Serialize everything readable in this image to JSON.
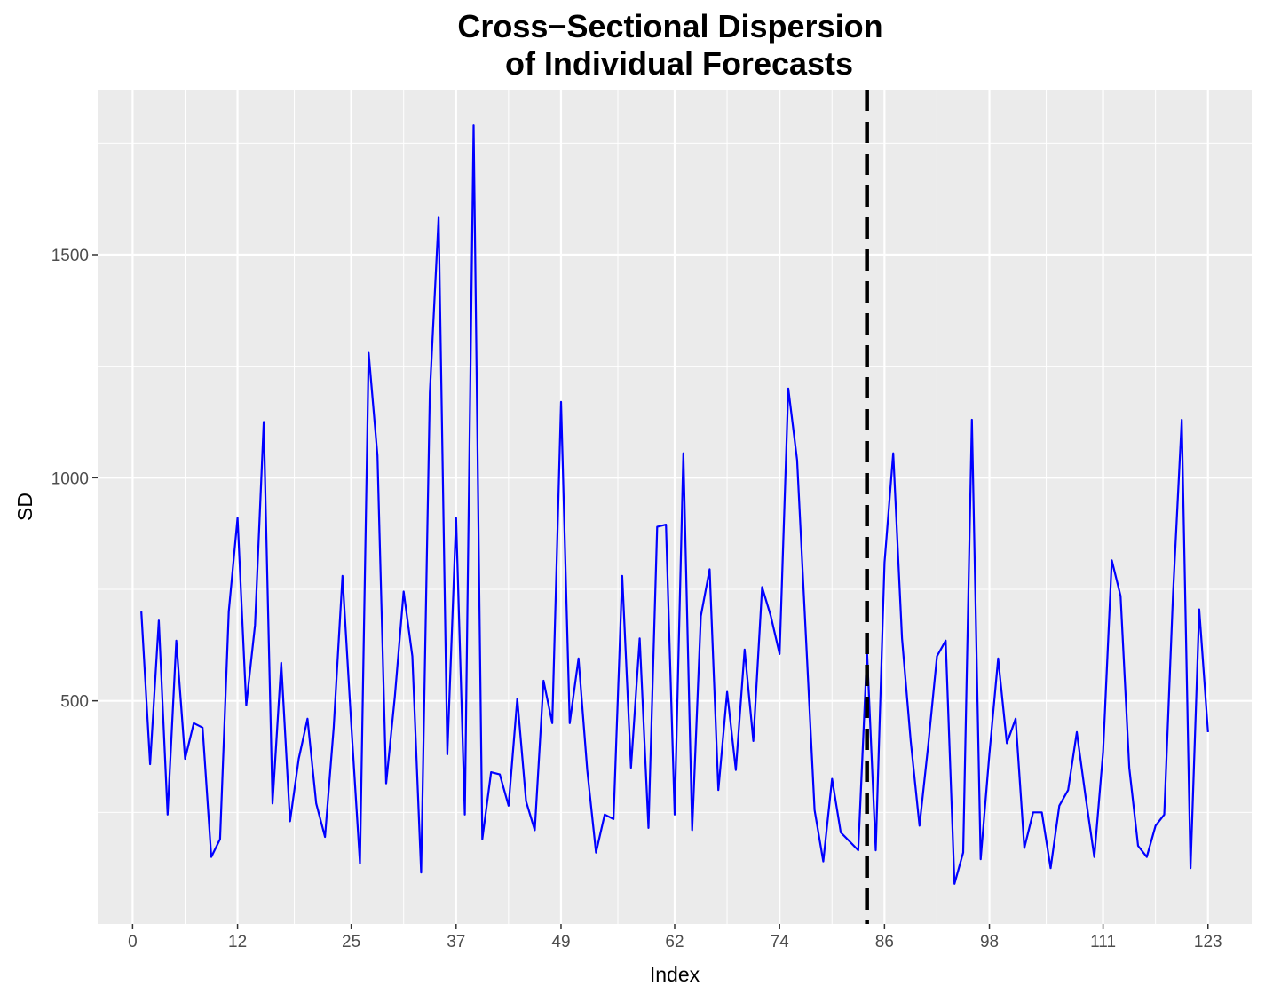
{
  "chart_data": {
    "type": "line",
    "title": [
      "Cross−Sectional Dispersion",
      "of Individual Forecasts"
    ],
    "xlabel": "Index",
    "ylabel": "SD",
    "xlim": [
      -4,
      128
    ],
    "ylim": [
      0,
      1870
    ],
    "x_ticks": [
      0,
      12,
      25,
      37,
      49,
      62,
      74,
      86,
      98,
      111,
      123
    ],
    "y_ticks": [
      500,
      1000,
      1500
    ],
    "y_minor": [
      250,
      750,
      1250,
      1750
    ],
    "grid": true,
    "vline": {
      "x": 84,
      "style": "dashed",
      "color": "#000000"
    },
    "colors": {
      "panel": "#ebebeb",
      "grid": "#ffffff",
      "line": "#0000ff"
    },
    "series": [
      {
        "x": [
          1,
          2,
          3,
          4,
          5,
          6,
          7,
          8,
          9,
          10,
          11,
          12,
          13,
          14,
          15,
          16,
          17,
          18,
          19,
          20,
          21,
          22,
          23,
          24,
          25,
          26,
          27,
          28,
          29,
          30,
          31,
          32,
          33,
          34,
          35,
          36,
          37,
          38,
          39,
          40,
          41,
          42,
          43,
          44,
          45,
          46,
          47,
          48,
          49,
          50,
          51,
          52,
          53,
          54,
          55,
          56,
          57,
          58,
          59,
          60,
          61,
          62,
          63,
          64,
          65,
          66,
          67,
          68,
          69,
          70,
          71,
          72,
          73,
          74,
          75,
          76,
          77,
          78,
          79,
          80,
          81,
          82,
          83,
          84,
          85,
          86,
          87,
          88,
          89,
          90,
          91,
          92,
          93,
          94,
          95,
          96,
          97,
          98,
          99,
          100,
          101,
          102,
          103,
          104,
          105,
          106,
          107,
          108,
          109,
          110,
          111,
          112,
          113,
          114,
          115,
          116,
          117,
          118,
          119,
          120,
          121,
          122,
          123
        ],
        "values": [
          700,
          358,
          680,
          245,
          635,
          370,
          450,
          440,
          150,
          190,
          700,
          910,
          490,
          670,
          1125,
          270,
          585,
          230,
          370,
          460,
          270,
          195,
          440,
          780,
          450,
          135,
          1280,
          1050,
          315,
          510,
          745,
          600,
          115,
          1190,
          1585,
          380,
          910,
          245,
          1790,
          190,
          340,
          335,
          265,
          505,
          275,
          210,
          545,
          450,
          1170,
          450,
          595,
          345,
          160,
          245,
          235,
          780,
          350,
          640,
          215,
          890,
          895,
          245,
          1055,
          210,
          690,
          795,
          300,
          520,
          345,
          615,
          410,
          755,
          690,
          605,
          1200,
          1040,
          650,
          255,
          140,
          325,
          205,
          185,
          165,
          610,
          165,
          810,
          1055,
          640,
          410,
          220,
          400,
          600,
          635,
          90,
          160,
          1130,
          145,
          380,
          595,
          405,
          460,
          170,
          250,
          250,
          125,
          265,
          300,
          430,
          285,
          150,
          385,
          815,
          735,
          350,
          175,
          150,
          220,
          245,
          740,
          1130,
          125,
          705,
          430
        ]
      }
    ]
  }
}
